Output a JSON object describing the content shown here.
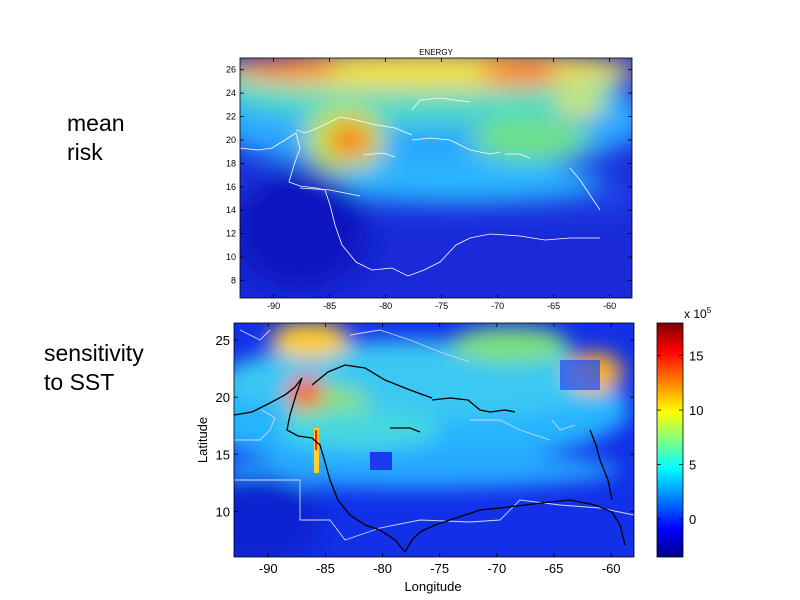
{
  "slide": {
    "label_top": "mean\nrisk",
    "label_bottom": "sensitivity\nto SST"
  },
  "top_map": {
    "title": "ENERGY",
    "x_ticks": [
      "-90",
      "-85",
      "-80",
      "-75",
      "-70",
      "-65",
      "-60"
    ],
    "y_ticks": [
      "26",
      "24",
      "22",
      "20",
      "18",
      "16",
      "14",
      "12",
      "10",
      "8"
    ],
    "xlim": [
      -93,
      -58
    ],
    "ylim": [
      6.5,
      27
    ]
  },
  "bottom_map": {
    "x_label": "Longitude",
    "y_label": "Latitude",
    "x_ticks": [
      "-90",
      "-85",
      "-80",
      "-75",
      "-70",
      "-65",
      "-60"
    ],
    "y_ticks": [
      "25",
      "20",
      "15",
      "10"
    ],
    "xlim": [
      -93,
      -58
    ],
    "ylim": [
      6,
      26.5
    ]
  },
  "colorbar": {
    "exponent_label": "x 10",
    "exponent": "5",
    "ticks": [
      "15",
      "10",
      "5",
      "0"
    ],
    "range": [
      -3.5,
      18
    ],
    "colormap": [
      "#00008f",
      "#0000ff",
      "#00ffff",
      "#ffff00",
      "#ff0000",
      "#800000"
    ]
  }
}
